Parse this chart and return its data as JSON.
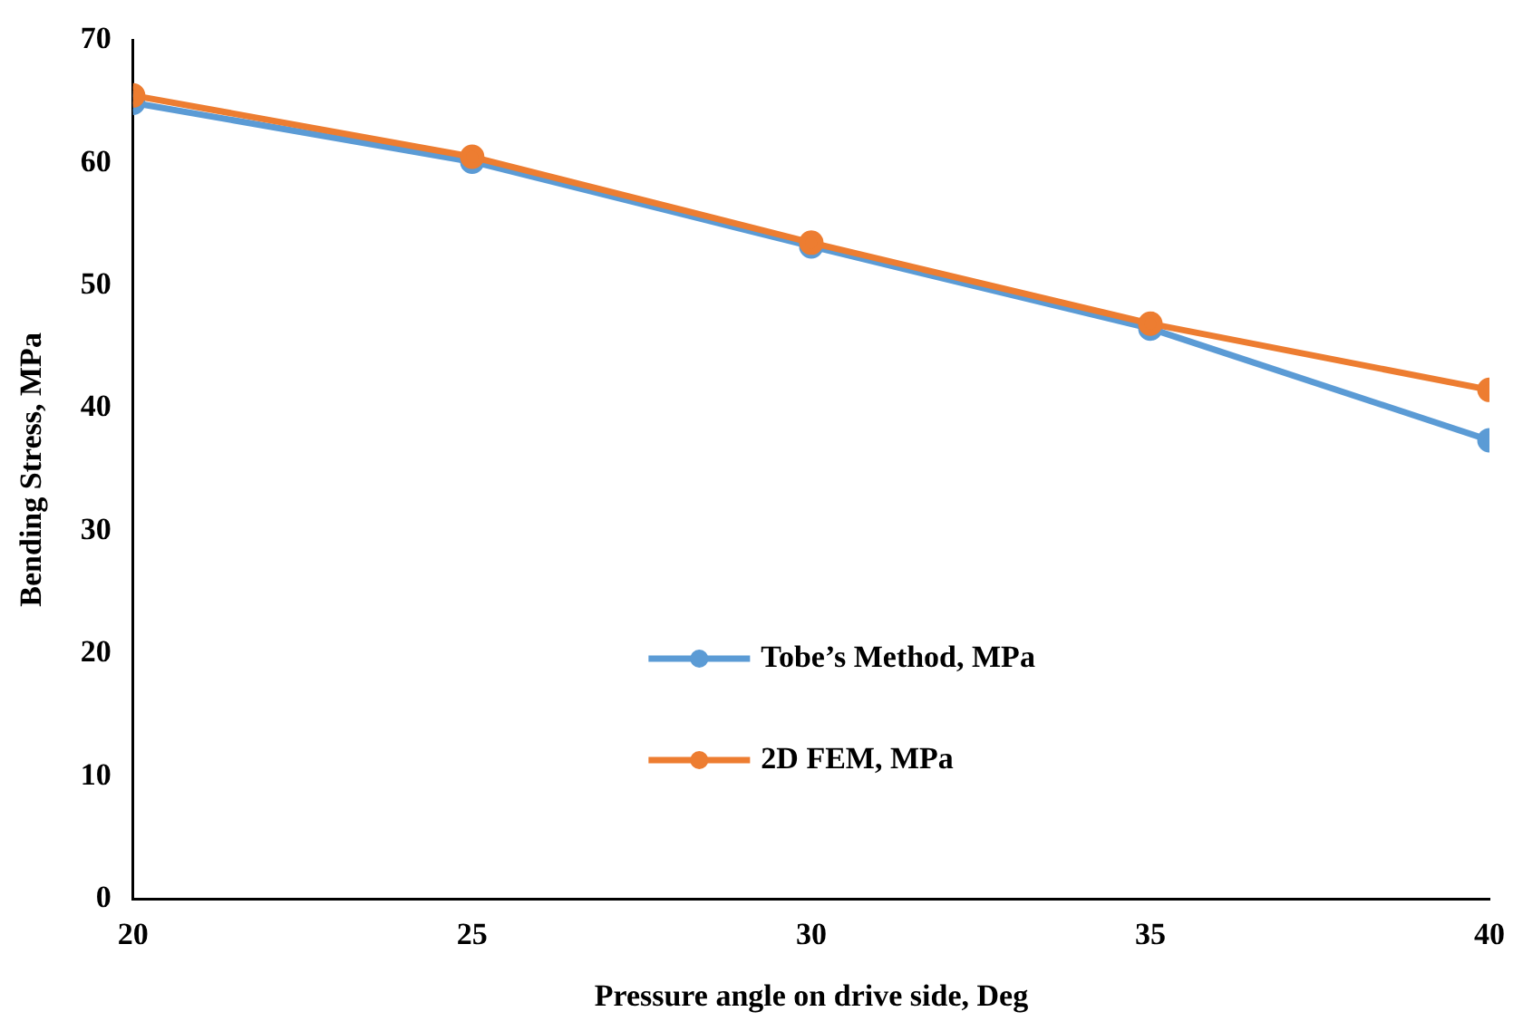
{
  "chart_data": {
    "type": "line",
    "xlabel": "Pressure angle on drive side, Deg",
    "ylabel": "Bending Stress, MPa",
    "x": [
      20,
      25,
      30,
      35,
      40
    ],
    "series": [
      {
        "name": "Tobe’s Method, MPa",
        "color": "#5b9bd5",
        "values": [
          64.9,
          60.1,
          53.2,
          46.5,
          37.4
        ]
      },
      {
        "name": "2D FEM, MPa",
        "color": "#ed7d31",
        "values": [
          65.5,
          60.5,
          53.5,
          46.9,
          41.5
        ]
      }
    ],
    "xlim": [
      20,
      40
    ],
    "xticks": [
      20,
      25,
      30,
      35,
      40
    ],
    "ylim": [
      0,
      70
    ],
    "yticks": [
      0,
      10,
      20,
      30,
      40,
      50,
      60,
      70
    ],
    "grid": false,
    "legend": "bottom",
    "marker": "circle",
    "line_style": "solid"
  }
}
